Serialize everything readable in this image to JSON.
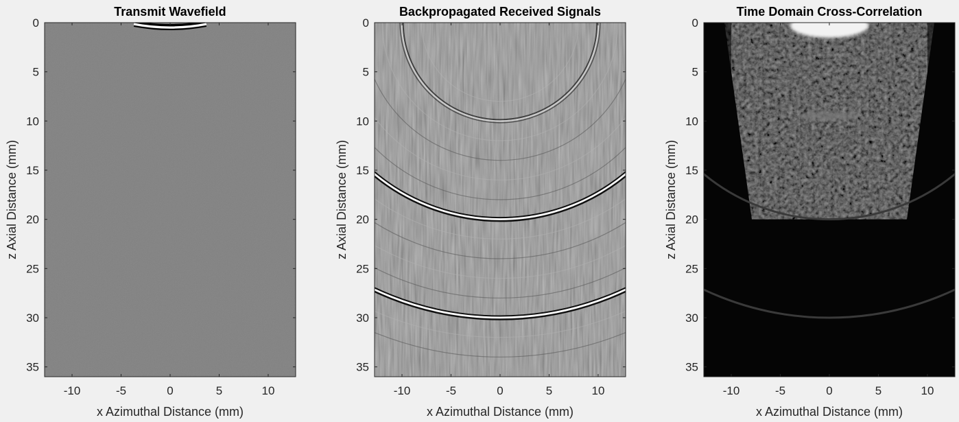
{
  "figure": {
    "background": "#f0f0f0"
  },
  "chart_data": [
    {
      "type": "heatmap",
      "title": "Transmit Wavefield",
      "xlabel": "x Azimuthal Distance (mm)",
      "ylabel": "z Axial Distance (mm)",
      "xlim": [
        -12.8,
        12.8
      ],
      "ylim": [
        0,
        36
      ],
      "y_reversed": true,
      "xticks": [
        -10,
        -5,
        0,
        5,
        10
      ],
      "yticks": [
        0,
        5,
        10,
        15,
        20,
        25,
        30,
        35
      ],
      "colormap": "gray",
      "background_level": "#808080",
      "features": [
        {
          "kind": "arc",
          "depth_mm": 0.2,
          "x_extent_mm": [
            -3.7,
            3.7
          ],
          "intensity": "high"
        }
      ]
    },
    {
      "type": "heatmap",
      "title": "Backpropagated Received Signals",
      "xlabel": "x Azimuthal Distance (mm)",
      "ylabel": "z Axial Distance (mm)",
      "xlim": [
        -12.8,
        12.8
      ],
      "ylim": [
        0,
        36
      ],
      "y_reversed": true,
      "xticks": [
        -10,
        -5,
        0,
        5,
        10
      ],
      "yticks": [
        0,
        5,
        10,
        15,
        20,
        25,
        30,
        35
      ],
      "colormap": "gray",
      "background_level": "#808080",
      "features": [
        {
          "kind": "arc",
          "depth_mm": 10,
          "intensity": "medium"
        },
        {
          "kind": "arc",
          "depth_mm": 20,
          "intensity": "high"
        },
        {
          "kind": "arc",
          "depth_mm": 30,
          "intensity": "high"
        }
      ]
    },
    {
      "type": "heatmap",
      "title": "Time Domain Cross-Correlation",
      "xlabel": "x Azimuthal Distance (mm)",
      "ylabel": "z Axial Distance (mm)",
      "xlim": [
        -12.8,
        12.8
      ],
      "ylim": [
        0,
        36
      ],
      "y_reversed": true,
      "xticks": [
        -10,
        -5,
        0,
        5,
        10
      ],
      "yticks": [
        0,
        5,
        10,
        15,
        20,
        25,
        30,
        35
      ],
      "colormap": "gray",
      "background_level": "#050505",
      "features": [
        {
          "kind": "bright_patch",
          "depth_mm": 0.5,
          "x_extent_mm": [
            -4,
            4
          ],
          "intensity": "high"
        },
        {
          "kind": "speckle_region",
          "depth_range_mm": [
            3,
            20
          ],
          "intensity": "low"
        },
        {
          "kind": "arc",
          "depth_mm": 20,
          "intensity": "low"
        },
        {
          "kind": "arc",
          "depth_mm": 30,
          "intensity": "low"
        }
      ]
    }
  ]
}
